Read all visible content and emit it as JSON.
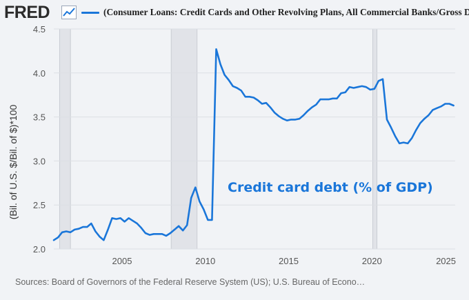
{
  "header": {
    "logo_text": "FRED",
    "legend_label": "(Consumer Loans: Credit Cards and Other Revolving Plans, All Commercial Banks/Gross D"
  },
  "sources_text": "Sources: Board of Governors of the Federal Reserve System (US); U.S. Bureau of Econo…",
  "colors": {
    "line": "#1a76d9",
    "annotation": "#1a76d9",
    "recession": "#e1e3e8",
    "background": "#f1f3f6",
    "grid": "#dcdfe4"
  },
  "chart_data": {
    "type": "line",
    "ylabel": "(Bil. of U.S. $/Bil. of $)*100",
    "xlabel": "",
    "xlim": [
      2000.9,
      2025.0
    ],
    "ylim": [
      2.0,
      4.5
    ],
    "x_ticks": [
      2005,
      2010,
      2015,
      2020,
      2025
    ],
    "y_ticks": [
      "2.0",
      "2.5",
      "3.0",
      "3.5",
      "4.0",
      "4.5"
    ],
    "grid": "horizontal",
    "annotation": "Credit card debt (% of GDP)",
    "recessions": [
      [
        2001.25,
        2001.9
      ],
      [
        2007.95,
        2009.5
      ],
      [
        2020.05,
        2020.3
      ]
    ],
    "series": [
      {
        "x": [
          2000.9,
          2001.15,
          2001.4,
          2001.65,
          2001.9,
          2002.15,
          2002.4,
          2002.65,
          2002.9,
          2003.15,
          2003.4,
          2003.65,
          2003.9,
          2004.15,
          2004.4,
          2004.65,
          2004.9,
          2005.15,
          2005.4,
          2005.65,
          2005.9,
          2006.15,
          2006.4,
          2006.65,
          2006.9,
          2007.15,
          2007.4,
          2007.65,
          2007.9,
          2008.15,
          2008.4,
          2008.65,
          2008.9,
          2009.15,
          2009.4,
          2009.65,
          2009.9,
          2010.15,
          2010.4,
          2010.65,
          2010.9,
          2011.15,
          2011.4,
          2011.65,
          2011.9,
          2012.15,
          2012.4,
          2012.65,
          2012.9,
          2013.15,
          2013.4,
          2013.65,
          2013.9,
          2014.15,
          2014.4,
          2014.65,
          2014.9,
          2015.15,
          2015.4,
          2015.65,
          2015.9,
          2016.15,
          2016.4,
          2016.65,
          2016.9,
          2017.15,
          2017.4,
          2017.65,
          2017.9,
          2018.15,
          2018.4,
          2018.65,
          2018.9,
          2019.15,
          2019.4,
          2019.65,
          2019.9,
          2020.15,
          2020.4,
          2020.65,
          2020.9,
          2021.15,
          2021.4,
          2021.65,
          2021.9,
          2022.15,
          2022.4,
          2022.65,
          2022.9,
          2023.15,
          2023.4,
          2023.65,
          2023.9,
          2024.15,
          2024.4,
          2024.65,
          2024.9
        ],
        "values": [
          2.1,
          2.13,
          2.19,
          2.2,
          2.19,
          2.22,
          2.23,
          2.25,
          2.25,
          2.29,
          2.2,
          2.14,
          2.1,
          2.22,
          2.35,
          2.34,
          2.35,
          2.31,
          2.35,
          2.32,
          2.29,
          2.24,
          2.18,
          2.16,
          2.17,
          2.17,
          2.17,
          2.15,
          2.18,
          2.22,
          2.26,
          2.21,
          2.27,
          2.58,
          2.7,
          2.54,
          2.45,
          2.33,
          2.33,
          4.27,
          4.1,
          3.98,
          3.92,
          3.85,
          3.83,
          3.8,
          3.73,
          3.73,
          3.72,
          3.69,
          3.65,
          3.66,
          3.61,
          3.55,
          3.51,
          3.48,
          3.46,
          3.47,
          3.47,
          3.48,
          3.52,
          3.57,
          3.61,
          3.64,
          3.7,
          3.7,
          3.7,
          3.71,
          3.71,
          3.77,
          3.78,
          3.84,
          3.83,
          3.84,
          3.85,
          3.84,
          3.81,
          3.82,
          3.91,
          3.93,
          3.47,
          3.38,
          3.28,
          3.2,
          3.21,
          3.2,
          3.26,
          3.35,
          3.43,
          3.48,
          3.52,
          3.58,
          3.6,
          3.62,
          3.65,
          3.65,
          3.63
        ]
      }
    ]
  }
}
